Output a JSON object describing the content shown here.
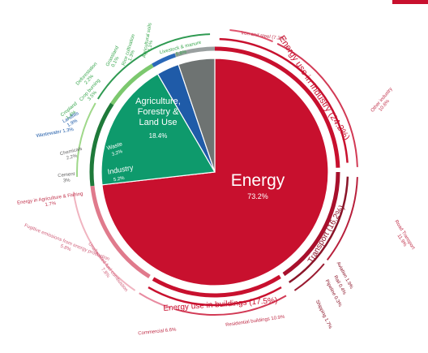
{
  "caption": "",
  "colors": {
    "energy": "#c8102e",
    "industry": "#6e7372",
    "waste": "#1f5ba8",
    "agriculture": "#0e9a6c",
    "subtext_energy": "#c0304a",
    "subtext_agri": "#3aa74f"
  },
  "chart_data": {
    "type": "pie",
    "slices": [
      {
        "label": "Energy",
        "value": "73.2%",
        "share": 73.2
      },
      {
        "label": "Agriculture, Forestry & Land Use",
        "value": "18.4%",
        "share": 18.4
      },
      {
        "label": "Waste",
        "value": "3.2%",
        "share": 3.2
      },
      {
        "label": "Industry",
        "value": "5.2%",
        "share": 5.2
      }
    ],
    "groups": [
      {
        "label": "Energy use in Industry (24.2%)",
        "share": 24.2
      },
      {
        "label": "Transport (16.2%)",
        "share": 16.2
      },
      {
        "label": "Energy use in buildings (17.5%)",
        "share": 17.5
      }
    ],
    "subsectors": [
      {
        "label": "Iron and steel (7.2%)",
        "share": 7.2,
        "ring": "energy"
      },
      {
        "label": "Other industry",
        "value": "10.6%",
        "share": 10.6,
        "ring": "energy"
      },
      {
        "label": "Road Transport",
        "value": "11.9%",
        "share": 11.9,
        "ring": "energy"
      },
      {
        "label": "Rail",
        "value": "0.4%",
        "share": 0.4,
        "ring": "energy"
      },
      {
        "label": "Pipeline",
        "value": "0.3%",
        "share": 0.3,
        "ring": "energy"
      },
      {
        "label": "Shipping",
        "value": "1.7%",
        "share": 1.7,
        "ring": "energy"
      },
      {
        "label": "Aviation",
        "value": "1.9%",
        "share": 1.9,
        "ring": "energy"
      },
      {
        "label": "Residential buildings",
        "value": "10.9%",
        "share": 10.9,
        "ring": "energy"
      },
      {
        "label": "Commercial",
        "value": "6.6%",
        "share": 6.6,
        "ring": "energy"
      },
      {
        "label": "Unallocated fuel combustion",
        "value": "7.8%",
        "share": 7.8,
        "ring": "energy"
      },
      {
        "label": "Fugitive emissions from energy production",
        "value": "5.8%",
        "share": 5.8,
        "ring": "energy"
      },
      {
        "label": "Energy in Agriculture & Fishing",
        "value": "1.7%",
        "share": 1.7,
        "ring": "energy"
      },
      {
        "label": "Cement",
        "value": "3%",
        "share": 3.0,
        "ring": "industry"
      },
      {
        "label": "Chemicals",
        "value": "2.2%",
        "share": 2.2,
        "ring": "industry"
      },
      {
        "label": "Wastewater",
        "value": "1.3%",
        "share": 1.3,
        "ring": "waste"
      },
      {
        "label": "Landfills",
        "value": "1.9%",
        "share": 1.9,
        "ring": "waste"
      },
      {
        "label": "Crop burning",
        "value": "3.5%",
        "share": 3.5,
        "ring": "agri"
      },
      {
        "label": "Deforestation",
        "value": "2.2%",
        "share": 2.2,
        "ring": "agri"
      },
      {
        "label": "Cropland",
        "value": "1.4%",
        "share": 1.4,
        "ring": "agri"
      },
      {
        "label": "Grassland",
        "value": "0.1%",
        "share": 0.1,
        "ring": "agri"
      },
      {
        "label": "Rice cultivation",
        "value": "1.3%",
        "share": 1.3,
        "ring": "agri"
      },
      {
        "label": "Agricultural soils",
        "value": "4.1%",
        "share": 4.1,
        "ring": "agri"
      },
      {
        "label": "Livestock & manure",
        "value": "5.8%",
        "share": 5.8,
        "ring": "agri"
      }
    ]
  }
}
